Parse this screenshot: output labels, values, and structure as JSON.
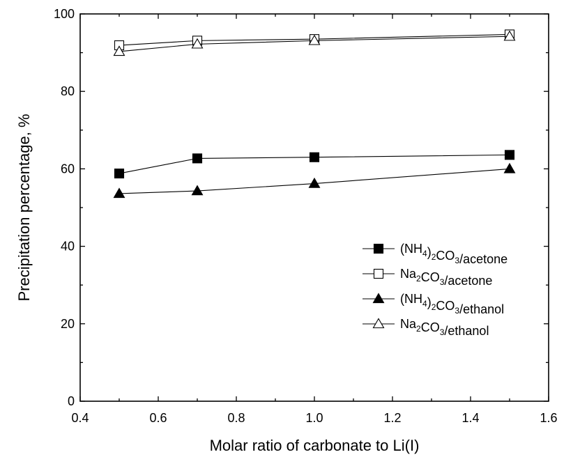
{
  "chart_data": {
    "type": "line",
    "title": "",
    "xlabel": "Molar ratio of carbonate to Li(I)",
    "ylabel": "Precipitation percentage, %",
    "xlim": [
      0.4,
      1.6
    ],
    "ylim": [
      0,
      100
    ],
    "xticks": [
      "0.4",
      "0.6",
      "0.8",
      "1.0",
      "1.2",
      "1.4",
      "1.6"
    ],
    "yticks": [
      "0",
      "20",
      "40",
      "60",
      "80",
      "100"
    ],
    "grid": false,
    "legend_position": "bottom-right",
    "x": [
      0.5,
      0.7,
      1.0,
      1.5
    ],
    "series": [
      {
        "name": "(NH4)2CO3/acetone",
        "legend": {
          "pre": "(NH",
          "sub1": "4",
          "mid": ")",
          "sub2": "2",
          "mid2": "CO",
          "sub3": "3",
          "post": "/acetone"
        },
        "marker": "square-filled",
        "values": [
          58.8,
          62.7,
          63.0,
          63.6
        ]
      },
      {
        "name": "Na2CO3/acetone",
        "legend": {
          "pre": "Na",
          "sub1": "2",
          "mid": "CO",
          "sub2": "3",
          "mid2": "",
          "sub3": "",
          "post": "/acetone"
        },
        "marker": "square-open",
        "values": [
          91.9,
          93.1,
          93.5,
          94.7
        ]
      },
      {
        "name": "(NH4)2CO3/ethanol",
        "legend": {
          "pre": "(NH",
          "sub1": "4",
          "mid": ")",
          "sub2": "2",
          "mid2": "CO",
          "sub3": "3",
          "post": "/ethanol"
        },
        "marker": "triangle-filled",
        "values": [
          53.6,
          54.3,
          56.2,
          60.0
        ]
      },
      {
        "name": "Na2CO3/ethanol",
        "legend": {
          "pre": "Na",
          "sub1": "2",
          "mid": "CO",
          "sub2": "3",
          "mid2": "",
          "sub3": "",
          "post": "/ethanol"
        },
        "marker": "triangle-open",
        "values": [
          90.3,
          92.2,
          93.1,
          94.2
        ]
      }
    ]
  }
}
